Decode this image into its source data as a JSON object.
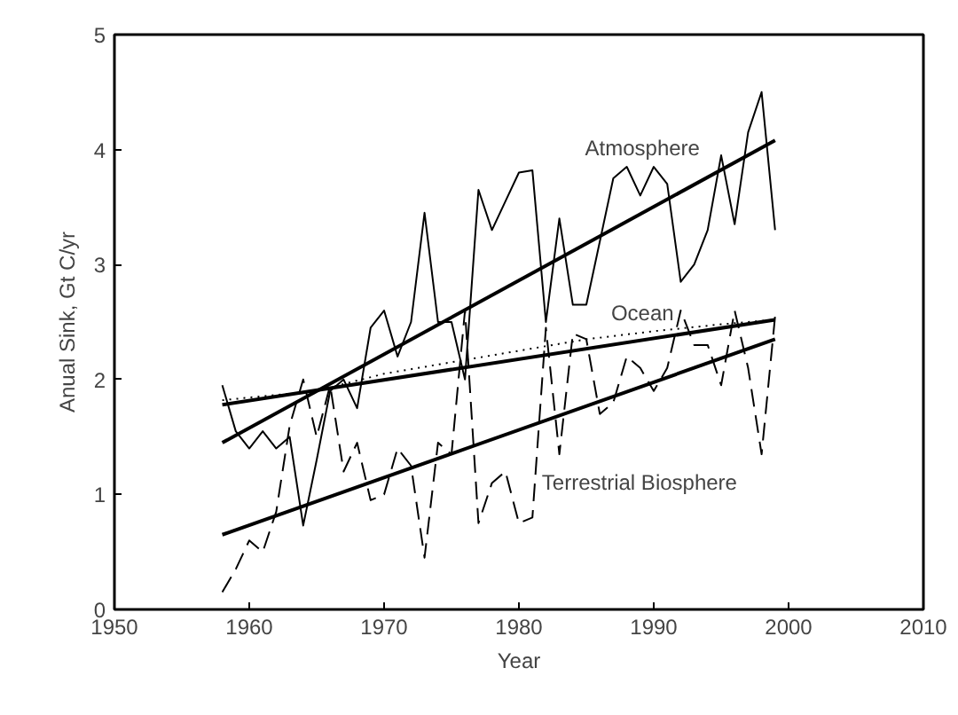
{
  "chart_data": {
    "type": "line",
    "xlabel": "Year",
    "ylabel": "Anual Sink, Gt C/yr",
    "xlim": [
      1950,
      2010
    ],
    "ylim": [
      0,
      5
    ],
    "xticks": [
      1950,
      1960,
      1970,
      1980,
      1990,
      2000,
      2010
    ],
    "yticks": [
      0,
      1,
      2,
      3,
      4,
      5
    ],
    "grid": false,
    "series": [
      {
        "name": "Atmosphere",
        "color": "#000000",
        "line_style": "solid",
        "x": [
          1958,
          1959,
          1960,
          1961,
          1962,
          1963,
          1964,
          1965,
          1966,
          1967,
          1968,
          1969,
          1970,
          1971,
          1972,
          1973,
          1974,
          1975,
          1976,
          1977,
          1978,
          1979,
          1980,
          1981,
          1982,
          1983,
          1984,
          1985,
          1986,
          1987,
          1988,
          1989,
          1990,
          1991,
          1992,
          1993,
          1994,
          1995,
          1996,
          1997,
          1998,
          1999
        ],
        "values": [
          1.95,
          1.55,
          1.4,
          1.55,
          1.4,
          1.5,
          0.73,
          1.3,
          1.9,
          2.0,
          1.75,
          2.45,
          2.6,
          2.2,
          2.5,
          3.45,
          2.5,
          2.5,
          2.0,
          3.65,
          3.3,
          3.55,
          3.8,
          3.82,
          2.5,
          3.4,
          2.65,
          2.65,
          3.2,
          3.75,
          3.85,
          3.6,
          3.85,
          3.7,
          2.85,
          3.0,
          3.3,
          3.95,
          3.35,
          4.15,
          4.5,
          3.3
        ]
      },
      {
        "color": "#000000",
        "line_style": "solid",
        "x": [
          1958,
          1999
        ],
        "values": [
          1.45,
          4.08
        ]
      },
      {
        "name": "Ocean",
        "color": "#000000",
        "line_style": "dotted",
        "x": [
          1958,
          1965,
          1970,
          1975,
          1980,
          1985,
          1990,
          1995,
          1999
        ],
        "values": [
          1.82,
          1.9,
          2.05,
          2.15,
          2.25,
          2.35,
          2.42,
          2.48,
          2.52
        ]
      },
      {
        "color": "#000000",
        "line_style": "solid",
        "x": [
          1958,
          1999
        ],
        "values": [
          1.78,
          2.52
        ]
      },
      {
        "name": "Terrestrial  Biosphere",
        "color": "#000000",
        "line_style": "dashed",
        "x": [
          1958,
          1959,
          1960,
          1961,
          1962,
          1963,
          1964,
          1965,
          1966,
          1967,
          1968,
          1969,
          1970,
          1971,
          1972,
          1973,
          1974,
          1975,
          1976,
          1977,
          1978,
          1979,
          1980,
          1981,
          1982,
          1983,
          1984,
          1985,
          1986,
          1987,
          1988,
          1989,
          1990,
          1991,
          1992,
          1993,
          1994,
          1995,
          1996,
          1997,
          1998,
          1999
        ],
        "values": [
          0.15,
          0.35,
          0.6,
          0.5,
          0.85,
          1.6,
          2.0,
          1.5,
          1.95,
          1.2,
          1.45,
          0.95,
          1.0,
          1.4,
          1.25,
          0.45,
          1.45,
          1.35,
          2.6,
          0.75,
          1.1,
          1.2,
          0.75,
          0.8,
          2.45,
          1.35,
          2.4,
          2.35,
          1.7,
          1.8,
          2.2,
          2.1,
          1.9,
          2.1,
          2.6,
          2.3,
          2.3,
          1.95,
          2.6,
          2.1,
          1.35,
          2.55
        ]
      },
      {
        "color": "#000000",
        "line_style": "solid",
        "x": [
          1958,
          1999
        ],
        "values": [
          0.65,
          2.35
        ]
      }
    ]
  }
}
